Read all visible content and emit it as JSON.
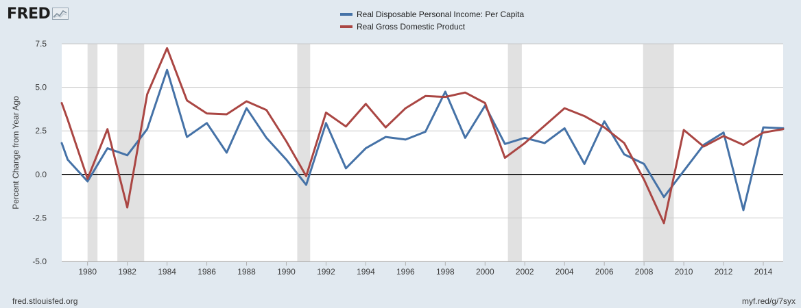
{
  "brand": {
    "logo_text": "FRED",
    "logo_icon": "trend-chart-icon"
  },
  "footer": {
    "source_url": "fred.stlouisfed.org",
    "short_link": "myf.red/g/7syx"
  },
  "chart_data": {
    "type": "line",
    "title": "",
    "xlabel": "",
    "ylabel": "Percent Change from Year Ago",
    "xlim": [
      1978.7,
      2015.0
    ],
    "ylim": [
      -5.0,
      7.5
    ],
    "yticks": [
      -5.0,
      -2.5,
      0.0,
      2.5,
      5.0,
      7.5
    ],
    "ytick_labels": [
      "-5.0",
      "-2.5",
      "0.0",
      "2.5",
      "5.0",
      "7.5"
    ],
    "xticks": [
      1980,
      1982,
      1984,
      1986,
      1988,
      1990,
      1992,
      1994,
      1996,
      1998,
      2000,
      2002,
      2004,
      2006,
      2008,
      2010,
      2012,
      2014
    ],
    "xtick_labels": [
      "1980",
      "1982",
      "1984",
      "1986",
      "1988",
      "1990",
      "1992",
      "1994",
      "1996",
      "1998",
      "2000",
      "2002",
      "2004",
      "2006",
      "2008",
      "2010",
      "2012",
      "2014"
    ],
    "grid": "horizontal",
    "legend_position": "top-center",
    "recessions": [
      [
        1980.0,
        1980.5
      ],
      [
        1981.5,
        1982.85
      ],
      [
        1990.55,
        1991.2
      ],
      [
        2001.15,
        2001.85
      ],
      [
        2007.95,
        2009.5
      ]
    ],
    "x": [
      1978.7,
      1979,
      1980,
      1981,
      1982,
      1983,
      1984,
      1985,
      1986,
      1987,
      1988,
      1989,
      1990,
      1991,
      1992,
      1993,
      1994,
      1995,
      1996,
      1997,
      1998,
      1999,
      2000,
      2001,
      2002,
      2003,
      2004,
      2005,
      2006,
      2007,
      2008,
      2009,
      2010,
      2011,
      2012,
      2013,
      2014,
      2015
    ],
    "series": [
      {
        "name": "Real Disposable Personal Income: Per Capita",
        "color": "#4572a7",
        "values": [
          1.8,
          0.85,
          -0.4,
          1.5,
          1.1,
          2.6,
          6.0,
          2.15,
          2.95,
          1.25,
          3.8,
          2.1,
          0.85,
          -0.6,
          2.95,
          0.35,
          1.5,
          2.15,
          2.0,
          2.45,
          4.75,
          2.1,
          3.95,
          1.75,
          2.1,
          1.8,
          2.65,
          0.6,
          3.05,
          1.15,
          0.6,
          -1.3,
          0.2,
          1.7,
          2.4,
          -2.05,
          2.7,
          2.65
        ]
      },
      {
        "name": "Real Gross Domestic Product",
        "color": "#aa4643",
        "values": [
          4.1,
          3.15,
          -0.25,
          2.6,
          -1.9,
          4.6,
          7.25,
          4.25,
          3.5,
          3.45,
          4.2,
          3.7,
          1.9,
          -0.1,
          3.55,
          2.75,
          4.05,
          2.7,
          3.8,
          4.5,
          4.45,
          4.7,
          4.1,
          0.95,
          1.8,
          2.8,
          3.8,
          3.35,
          2.7,
          1.8,
          -0.3,
          -2.8,
          2.55,
          1.6,
          2.2,
          1.7,
          2.4,
          2.6
        ]
      }
    ]
  }
}
